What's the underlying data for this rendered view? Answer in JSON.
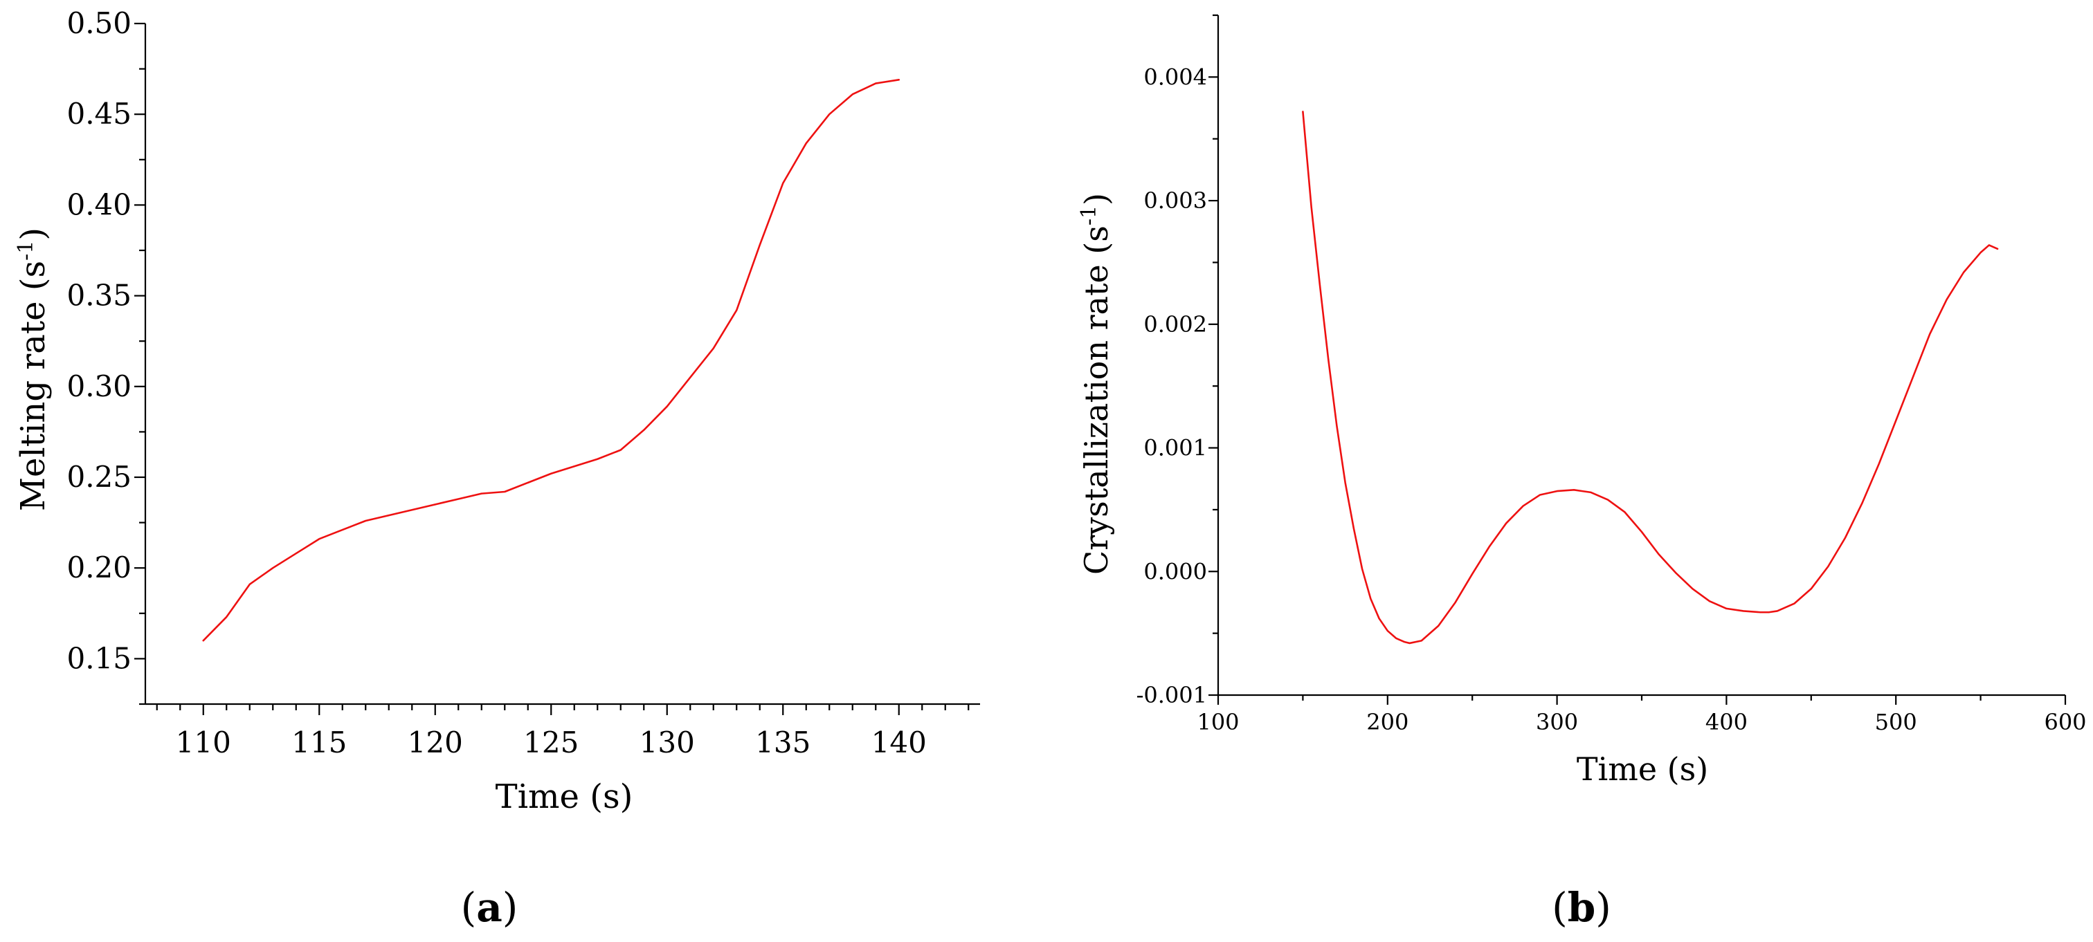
{
  "chart_data": [
    {
      "panel_label": "a",
      "type": "line",
      "xlabel": "Time (s)",
      "ylabel": "Melting rate (s",
      "ylabel_sup": "-1",
      "ylabel_end": ")",
      "xlim": [
        107.5,
        143.5
      ],
      "ylim": [
        0.125,
        0.5
      ],
      "xticks": [
        110,
        115,
        120,
        125,
        130,
        135,
        140
      ],
      "yticks": [
        0.15,
        0.2,
        0.25,
        0.3,
        0.35,
        0.4,
        0.45,
        0.5
      ],
      "xtick_labels": [
        "110",
        "115",
        "120",
        "125",
        "130",
        "135",
        "140"
      ],
      "ytick_labels": [
        "0.15",
        "0.20",
        "0.25",
        "0.30",
        "0.35",
        "0.40",
        "0.45",
        "0.50"
      ],
      "xminor_step": 1,
      "yminor_step": 0.025,
      "series_color": "#ee1111",
      "series": [
        {
          "x": [
            110,
            111,
            112,
            113,
            114,
            115,
            116,
            117,
            118,
            119,
            120,
            121,
            122,
            123,
            124,
            125,
            126,
            127,
            128,
            129,
            130,
            131,
            132,
            133,
            134,
            135,
            136,
            137,
            138,
            139,
            140
          ],
          "values": [
            0.16,
            0.173,
            0.191,
            0.2,
            0.208,
            0.216,
            0.221,
            0.226,
            0.229,
            0.232,
            0.235,
            0.238,
            0.241,
            0.242,
            0.247,
            0.252,
            0.256,
            0.26,
            0.265,
            0.276,
            0.289,
            0.305,
            0.321,
            0.342,
            0.378,
            0.412,
            0.434,
            0.45,
            0.461,
            0.467,
            0.469
          ]
        }
      ]
    },
    {
      "panel_label": "b",
      "type": "line",
      "xlabel": "Time (s)",
      "ylabel": "Crystallization rate (s",
      "ylabel_sup": "-1",
      "ylabel_end": ")",
      "xlim": [
        100,
        600
      ],
      "ylim": [
        -0.001,
        0.0045
      ],
      "xticks": [
        100,
        200,
        300,
        400,
        500,
        600
      ],
      "yticks": [
        -0.001,
        0.0,
        0.001,
        0.002,
        0.003,
        0.004
      ],
      "xtick_labels": [
        "100",
        "200",
        "300",
        "400",
        "500",
        "600"
      ],
      "ytick_labels": [
        "-0.001",
        "0.000",
        "0.001",
        "0.002",
        "0.003",
        "0.004"
      ],
      "xminor_step": 50,
      "yminor_step": 0.0005,
      "series_color": "#ee1111",
      "series": [
        {
          "x": [
            150,
            155,
            160,
            165,
            170,
            175,
            180,
            185,
            190,
            195,
            200,
            205,
            210,
            213,
            220,
            230,
            240,
            250,
            260,
            270,
            280,
            290,
            300,
            310,
            315,
            320,
            330,
            340,
            350,
            360,
            370,
            380,
            390,
            400,
            410,
            420,
            425,
            430,
            440,
            450,
            460,
            470,
            480,
            490,
            500,
            510,
            520,
            530,
            540,
            550,
            555,
            560
          ],
          "values": [
            0.00372,
            0.00295,
            0.00232,
            0.00172,
            0.00118,
            0.00072,
            0.00035,
            2e-05,
            -0.00022,
            -0.00038,
            -0.00048,
            -0.00054,
            -0.00057,
            -0.00058,
            -0.00056,
            -0.00044,
            -0.00025,
            -2e-05,
            0.0002,
            0.00039,
            0.00053,
            0.00062,
            0.00065,
            0.00066,
            0.00065,
            0.00064,
            0.00058,
            0.00048,
            0.00032,
            0.00014,
            -1e-05,
            -0.00014,
            -0.00024,
            -0.0003,
            -0.00032,
            -0.00033,
            -0.00033,
            -0.00032,
            -0.00026,
            -0.00014,
            4e-05,
            0.00027,
            0.00055,
            0.00087,
            0.00122,
            0.00157,
            0.00192,
            0.0022,
            0.00242,
            0.00258,
            0.00264,
            0.00261
          ]
        }
      ]
    }
  ]
}
